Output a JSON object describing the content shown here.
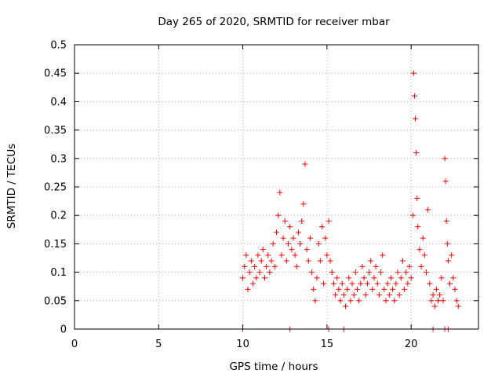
{
  "chart_data": {
    "type": "scatter",
    "title": "Day 265 of 2020, SRMTID for receiver mbar",
    "xlabel": "GPS time / hours",
    "ylabel": "SRMTID / TECUs",
    "xlim": [
      0,
      24
    ],
    "ylim": [
      0,
      0.5
    ],
    "x_ticks": [
      0,
      5,
      10,
      15,
      20
    ],
    "x_tick_labels": [
      "0",
      "5",
      "10",
      "15",
      "20"
    ],
    "y_ticks": [
      0,
      0.05,
      0.1,
      0.15,
      0.2,
      0.25,
      0.3,
      0.35,
      0.4,
      0.45,
      0.5
    ],
    "y_tick_labels": [
      "0",
      "0.05",
      "0.1",
      "0.15",
      "0.2",
      "0.25",
      "0.3",
      "0.35",
      "0.4",
      "0.45",
      "0.5"
    ],
    "grid": true,
    "marker": "+",
    "color": "#ff0000",
    "series": [
      {
        "name": "SRMTID",
        "x": [
          10.0,
          10.1,
          10.2,
          10.3,
          10.4,
          10.5,
          10.6,
          10.7,
          10.8,
          10.9,
          11.0,
          11.1,
          11.2,
          11.3,
          11.4,
          11.5,
          11.6,
          11.7,
          11.8,
          11.9,
          12.0,
          12.1,
          12.2,
          12.3,
          12.4,
          12.5,
          12.6,
          12.7,
          12.8,
          12.9,
          13.0,
          13.1,
          13.2,
          13.3,
          13.4,
          13.5,
          13.6,
          13.7,
          13.8,
          13.9,
          14.0,
          14.1,
          14.2,
          14.3,
          14.4,
          14.5,
          14.6,
          14.7,
          14.8,
          14.9,
          15.0,
          15.1,
          15.2,
          15.3,
          15.4,
          15.5,
          15.6,
          15.7,
          15.8,
          15.9,
          16.0,
          16.1,
          16.2,
          16.3,
          16.4,
          16.5,
          16.6,
          16.7,
          16.8,
          16.9,
          17.0,
          17.1,
          17.2,
          17.3,
          17.4,
          17.5,
          17.6,
          17.7,
          17.8,
          17.9,
          18.0,
          18.1,
          18.2,
          18.3,
          18.4,
          18.5,
          18.6,
          18.7,
          18.8,
          18.9,
          19.0,
          19.1,
          19.2,
          19.3,
          19.4,
          19.5,
          19.6,
          19.7,
          19.8,
          19.9,
          20.0,
          20.1,
          20.15,
          20.2,
          20.25,
          20.3,
          20.35,
          20.4,
          20.5,
          20.6,
          20.7,
          20.8,
          20.9,
          21.0,
          21.1,
          21.2,
          21.3,
          21.4,
          21.5,
          21.6,
          21.7,
          21.8,
          21.9,
          22.0,
          22.05,
          22.1,
          22.15,
          22.2,
          22.3,
          22.4,
          22.5,
          22.6,
          22.7,
          22.8
        ],
        "y": [
          0.09,
          0.11,
          0.13,
          0.07,
          0.1,
          0.12,
          0.08,
          0.11,
          0.09,
          0.13,
          0.1,
          0.12,
          0.14,
          0.09,
          0.11,
          0.13,
          0.1,
          0.12,
          0.15,
          0.11,
          0.17,
          0.2,
          0.24,
          0.13,
          0.16,
          0.19,
          0.12,
          0.15,
          0.18,
          0.14,
          0.16,
          0.13,
          0.11,
          0.17,
          0.15,
          0.19,
          0.22,
          0.29,
          0.14,
          0.12,
          0.16,
          0.1,
          0.07,
          0.05,
          0.09,
          0.15,
          0.12,
          0.18,
          0.08,
          0.16,
          0.13,
          0.19,
          0.12,
          0.1,
          0.08,
          0.06,
          0.09,
          0.07,
          0.05,
          0.08,
          0.06,
          0.04,
          0.07,
          0.09,
          0.05,
          0.08,
          0.06,
          0.1,
          0.07,
          0.05,
          0.08,
          0.11,
          0.09,
          0.06,
          0.08,
          0.1,
          0.12,
          0.07,
          0.09,
          0.11,
          0.08,
          0.06,
          0.1,
          0.13,
          0.07,
          0.05,
          0.08,
          0.06,
          0.09,
          0.07,
          0.05,
          0.08,
          0.1,
          0.06,
          0.09,
          0.12,
          0.07,
          0.1,
          0.08,
          0.11,
          0.09,
          0.2,
          0.45,
          0.41,
          0.37,
          0.31,
          0.23,
          0.18,
          0.14,
          0.11,
          0.16,
          0.13,
          0.1,
          0.21,
          0.08,
          0.05,
          0.06,
          0.04,
          0.07,
          0.05,
          0.06,
          0.09,
          0.05,
          0.3,
          0.26,
          0.19,
          0.15,
          0.12,
          0.08,
          0.13,
          0.09,
          0.07,
          0.05,
          0.04
        ]
      }
    ],
    "zero_markers_x": [
      10.0,
      12.8,
      15.1,
      16.0,
      21.3,
      22.0,
      22.2
    ]
  }
}
